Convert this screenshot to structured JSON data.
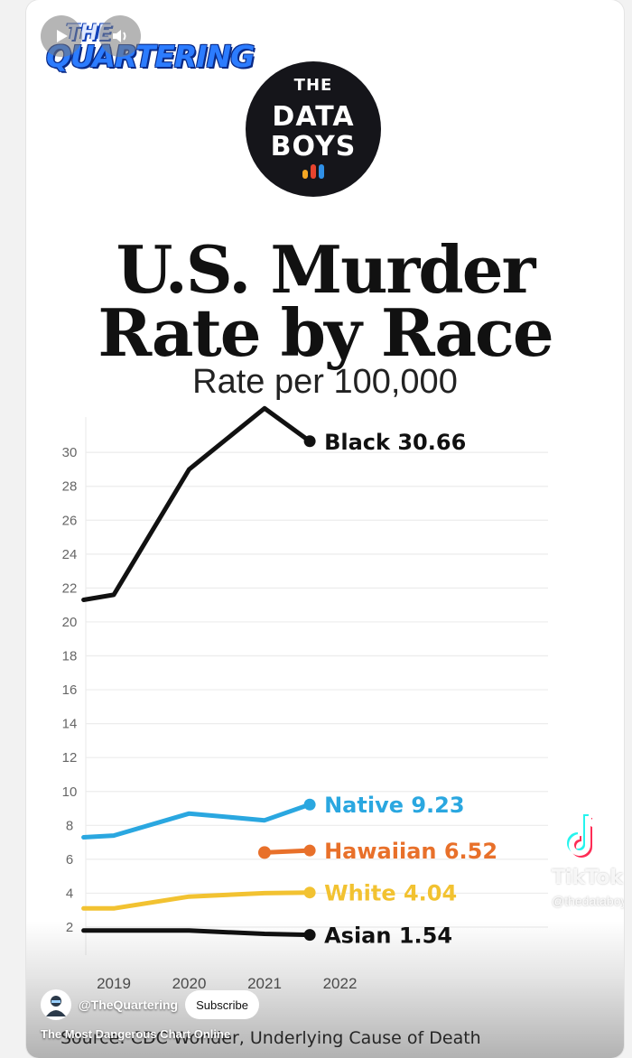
{
  "controls": {
    "play_icon": "play-icon",
    "volume_icon": "volume-icon"
  },
  "brand": {
    "line1": "THE",
    "line2": "QUARTERING"
  },
  "logo": {
    "line1": "THE",
    "line2": "DATA",
    "line3": "BOYS",
    "dot_colors": [
      "#f5a623",
      "#e8442e",
      "#2f8fe6"
    ]
  },
  "chart_data": {
    "type": "line",
    "title": "U.S. Murder Rate by Race",
    "subtitle": "Rate per 100,000",
    "x_ticks": [
      "2019",
      "2020",
      "2021",
      "2022"
    ],
    "y_ticks": [
      30,
      28,
      26,
      24,
      22,
      20,
      18,
      16,
      14,
      12,
      10,
      8,
      6,
      4,
      2
    ],
    "ylim": [
      2,
      30
    ],
    "grid": true,
    "source": "Source: CDC Wonder, Underlying Cause of Death",
    "series": [
      {
        "name": "Black",
        "label": "Black 30.66",
        "color": "#111111",
        "points": [
          [
            2018.6,
            21.3
          ],
          [
            2019.0,
            21.6
          ],
          [
            2020.0,
            29.0
          ],
          [
            2021.0,
            32.6
          ],
          [
            2021.6,
            30.66
          ]
        ]
      },
      {
        "name": "Native",
        "label": "Native 9.23",
        "color": "#2aa7e0",
        "points": [
          [
            2018.6,
            7.3
          ],
          [
            2019.0,
            7.4
          ],
          [
            2020.0,
            8.7
          ],
          [
            2021.0,
            8.3
          ],
          [
            2021.6,
            9.23
          ]
        ]
      },
      {
        "name": "Hawaiian",
        "label": "Hawaiian 6.52",
        "color": "#e8702a",
        "points": [
          [
            2021.0,
            6.4
          ],
          [
            2021.6,
            6.52
          ]
        ]
      },
      {
        "name": "White",
        "label": "White 4.04",
        "color": "#f2c231",
        "points": [
          [
            2018.6,
            3.1
          ],
          [
            2019.0,
            3.1
          ],
          [
            2020.0,
            3.8
          ],
          [
            2021.0,
            4.0
          ],
          [
            2021.6,
            4.04
          ]
        ]
      },
      {
        "name": "Asian",
        "label": "Asian 1.54",
        "color": "#111111",
        "points": [
          [
            2018.6,
            1.8
          ],
          [
            2019.0,
            1.8
          ],
          [
            2020.0,
            1.8
          ],
          [
            2021.0,
            1.6
          ],
          [
            2021.6,
            1.54
          ]
        ]
      }
    ]
  },
  "watermark": {
    "brand": "TikTok",
    "handle": "@thedataboys"
  },
  "channel": {
    "name": "@TheQuartering",
    "subscribe_label": "Subscribe"
  },
  "video": {
    "title": "The Most Dangerous Chart Online"
  }
}
